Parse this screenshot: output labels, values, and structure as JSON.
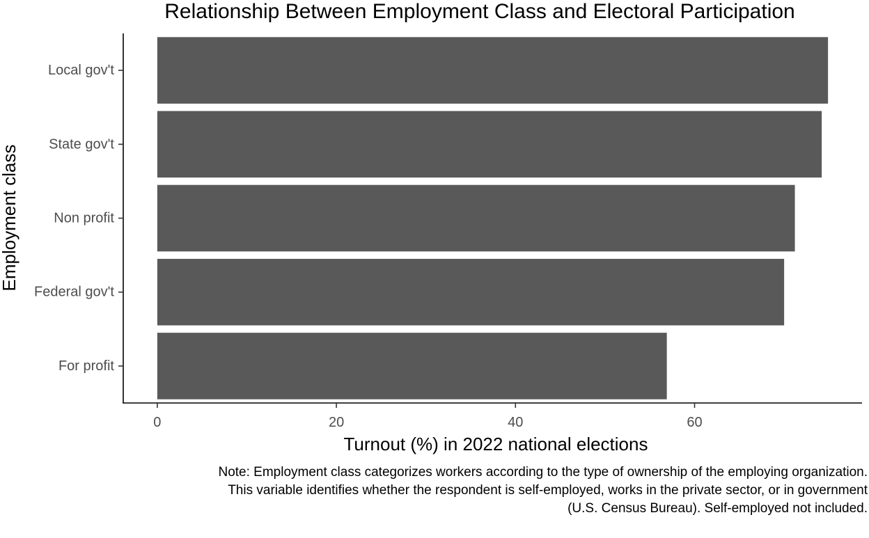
{
  "chart_data": {
    "type": "bar",
    "orientation": "horizontal",
    "title": "Relationship Between Employment Class and Electoral Participation",
    "xlabel": "Turnout (%) in 2022 national elections",
    "ylabel": "Employment class",
    "categories": [
      "Local gov't",
      "State gov't",
      "Non profit",
      "Federal gov't",
      "For profit"
    ],
    "values": [
      74.9,
      74.2,
      71.2,
      70.0,
      56.9
    ],
    "xlim": [
      -3.8,
      78.7
    ],
    "xticks": [
      0,
      20,
      40,
      60
    ],
    "bar_color": "#595959",
    "grid": false,
    "legend": "none",
    "note": [
      "Note: Employment class categorizes workers according to the type of ownership of the employing organization.",
      "This variable identifies whether the respondent is self-employed, works in the private sector, or in government",
      "(U.S. Census Bureau). Self-employed not included."
    ]
  }
}
